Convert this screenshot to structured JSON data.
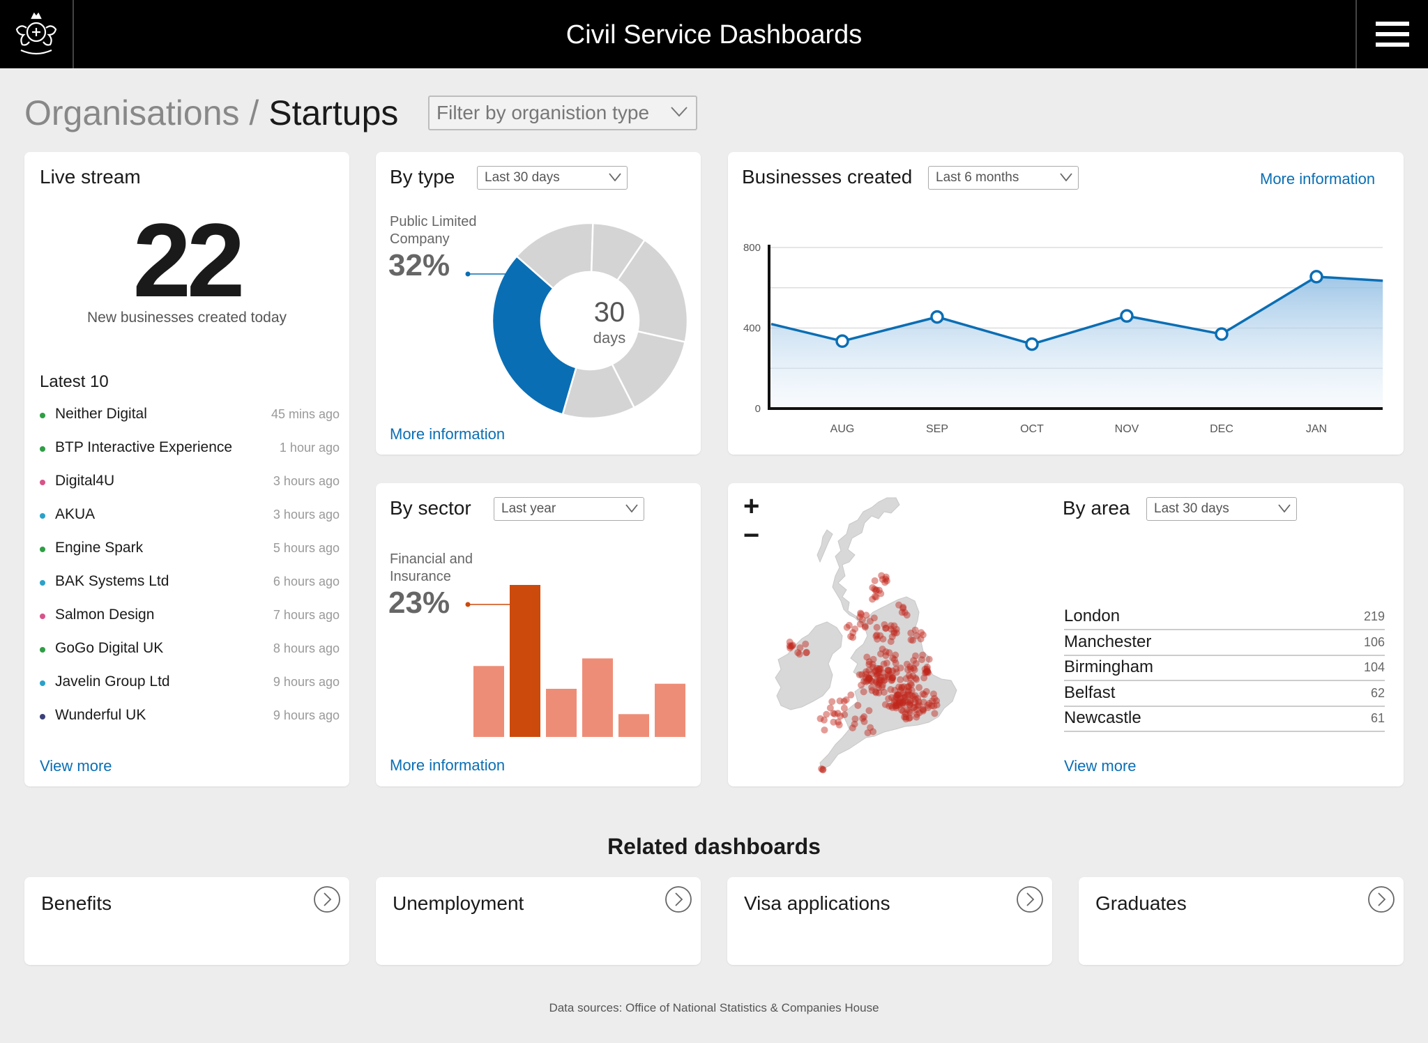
{
  "header": {
    "title": "Civil Service Dashboards",
    "crest_icon": "royal-crest-icon",
    "menu_icon": "hamburger-menu-icon"
  },
  "breadcrumb": {
    "parent": "Organisations",
    "separator": "/",
    "current": "Startups"
  },
  "filter": {
    "label": "Filter by organistion type"
  },
  "live_stream": {
    "title": "Live stream",
    "count": "22",
    "subtitle": "New businesses created today",
    "latest_title": "Latest 10",
    "items": [
      {
        "name": "Neither Digital",
        "time": "45 mins ago",
        "color": "#2e9e44"
      },
      {
        "name": "BTP Interactive Experience",
        "time": "1 hour ago",
        "color": "#2e9e44"
      },
      {
        "name": "Digital4U",
        "time": "3 hours ago",
        "color": "#d6548a"
      },
      {
        "name": "AKUA",
        "time": "3 hours ago",
        "color": "#2aa1c9"
      },
      {
        "name": "Engine Spark",
        "time": "5 hours ago",
        "color": "#2e9e44"
      },
      {
        "name": "BAK Systems Ltd",
        "time": "6 hours ago",
        "color": "#2aa1c9"
      },
      {
        "name": "Salmon Design",
        "time": "7 hours ago",
        "color": "#d6548a"
      },
      {
        "name": "GoGo Digital UK",
        "time": "8 hours ago",
        "color": "#2e9e44"
      },
      {
        "name": "Javelin Group Ltd",
        "time": "9 hours ago",
        "color": "#2aa1c9"
      },
      {
        "name": "Wunderful UK",
        "time": "9 hours ago",
        "color": "#3b3f7a"
      }
    ],
    "view_more": "View more"
  },
  "by_type": {
    "title": "By type",
    "period": "Last 30 days",
    "highlight_label_1": "Public Limited",
    "highlight_label_2": "Company",
    "highlight_value": "32%",
    "center_value": "30",
    "center_unit": "days",
    "more": "More information"
  },
  "businesses_created": {
    "title": "Businesses created",
    "period": "Last 6 months",
    "more": "More information"
  },
  "by_sector": {
    "title": "By sector",
    "period": "Last year",
    "highlight_label_1": "Financial and",
    "highlight_label_2": "Insurance",
    "highlight_value": "23%",
    "more": "More information"
  },
  "by_area": {
    "title": "By area",
    "period": "Last 30 days",
    "zoom_in": "+",
    "zoom_out": "−",
    "rows": [
      {
        "name": "London",
        "value": "219"
      },
      {
        "name": "Manchester",
        "value": "106"
      },
      {
        "name": "Birmingham",
        "value": "104"
      },
      {
        "name": "Belfast",
        "value": "62"
      },
      {
        "name": "Newcastle",
        "value": "61"
      }
    ],
    "view_more": "View more"
  },
  "related": {
    "title": "Related dashboards",
    "items": [
      "Benefits",
      "Unemployment",
      "Visa applications",
      "Graduates"
    ]
  },
  "footer": "Data sources: Office of National Statistics & Companies House",
  "colors": {
    "accent_blue": "#0a6eb4",
    "sector_highlight": "#cc4a0c",
    "sector_bar": "#ee8d77",
    "donut_grey": "#d4d4d4"
  },
  "chart_data": [
    {
      "type": "pie",
      "title": "By type",
      "highlight_slice_index": 0,
      "values": [
        32,
        14,
        9,
        19,
        14,
        12
      ]
    },
    {
      "type": "area",
      "title": "Businesses created",
      "categories": [
        "AUG",
        "SEP",
        "OCT",
        "NOV",
        "DEC",
        "JAN"
      ],
      "values": [
        420,
        335,
        455,
        320,
        460,
        370,
        655,
        635
      ],
      "x": [
        -0.75,
        0,
        1,
        2,
        3,
        4,
        5,
        5.7
      ],
      "yticks": [
        0,
        400,
        800
      ],
      "ylim": [
        0,
        800
      ],
      "grid": true
    },
    {
      "type": "bar",
      "title": "By sector",
      "highlight_index": 1,
      "values": [
        14,
        30,
        9.5,
        15.5,
        4.5,
        10.5
      ]
    }
  ]
}
